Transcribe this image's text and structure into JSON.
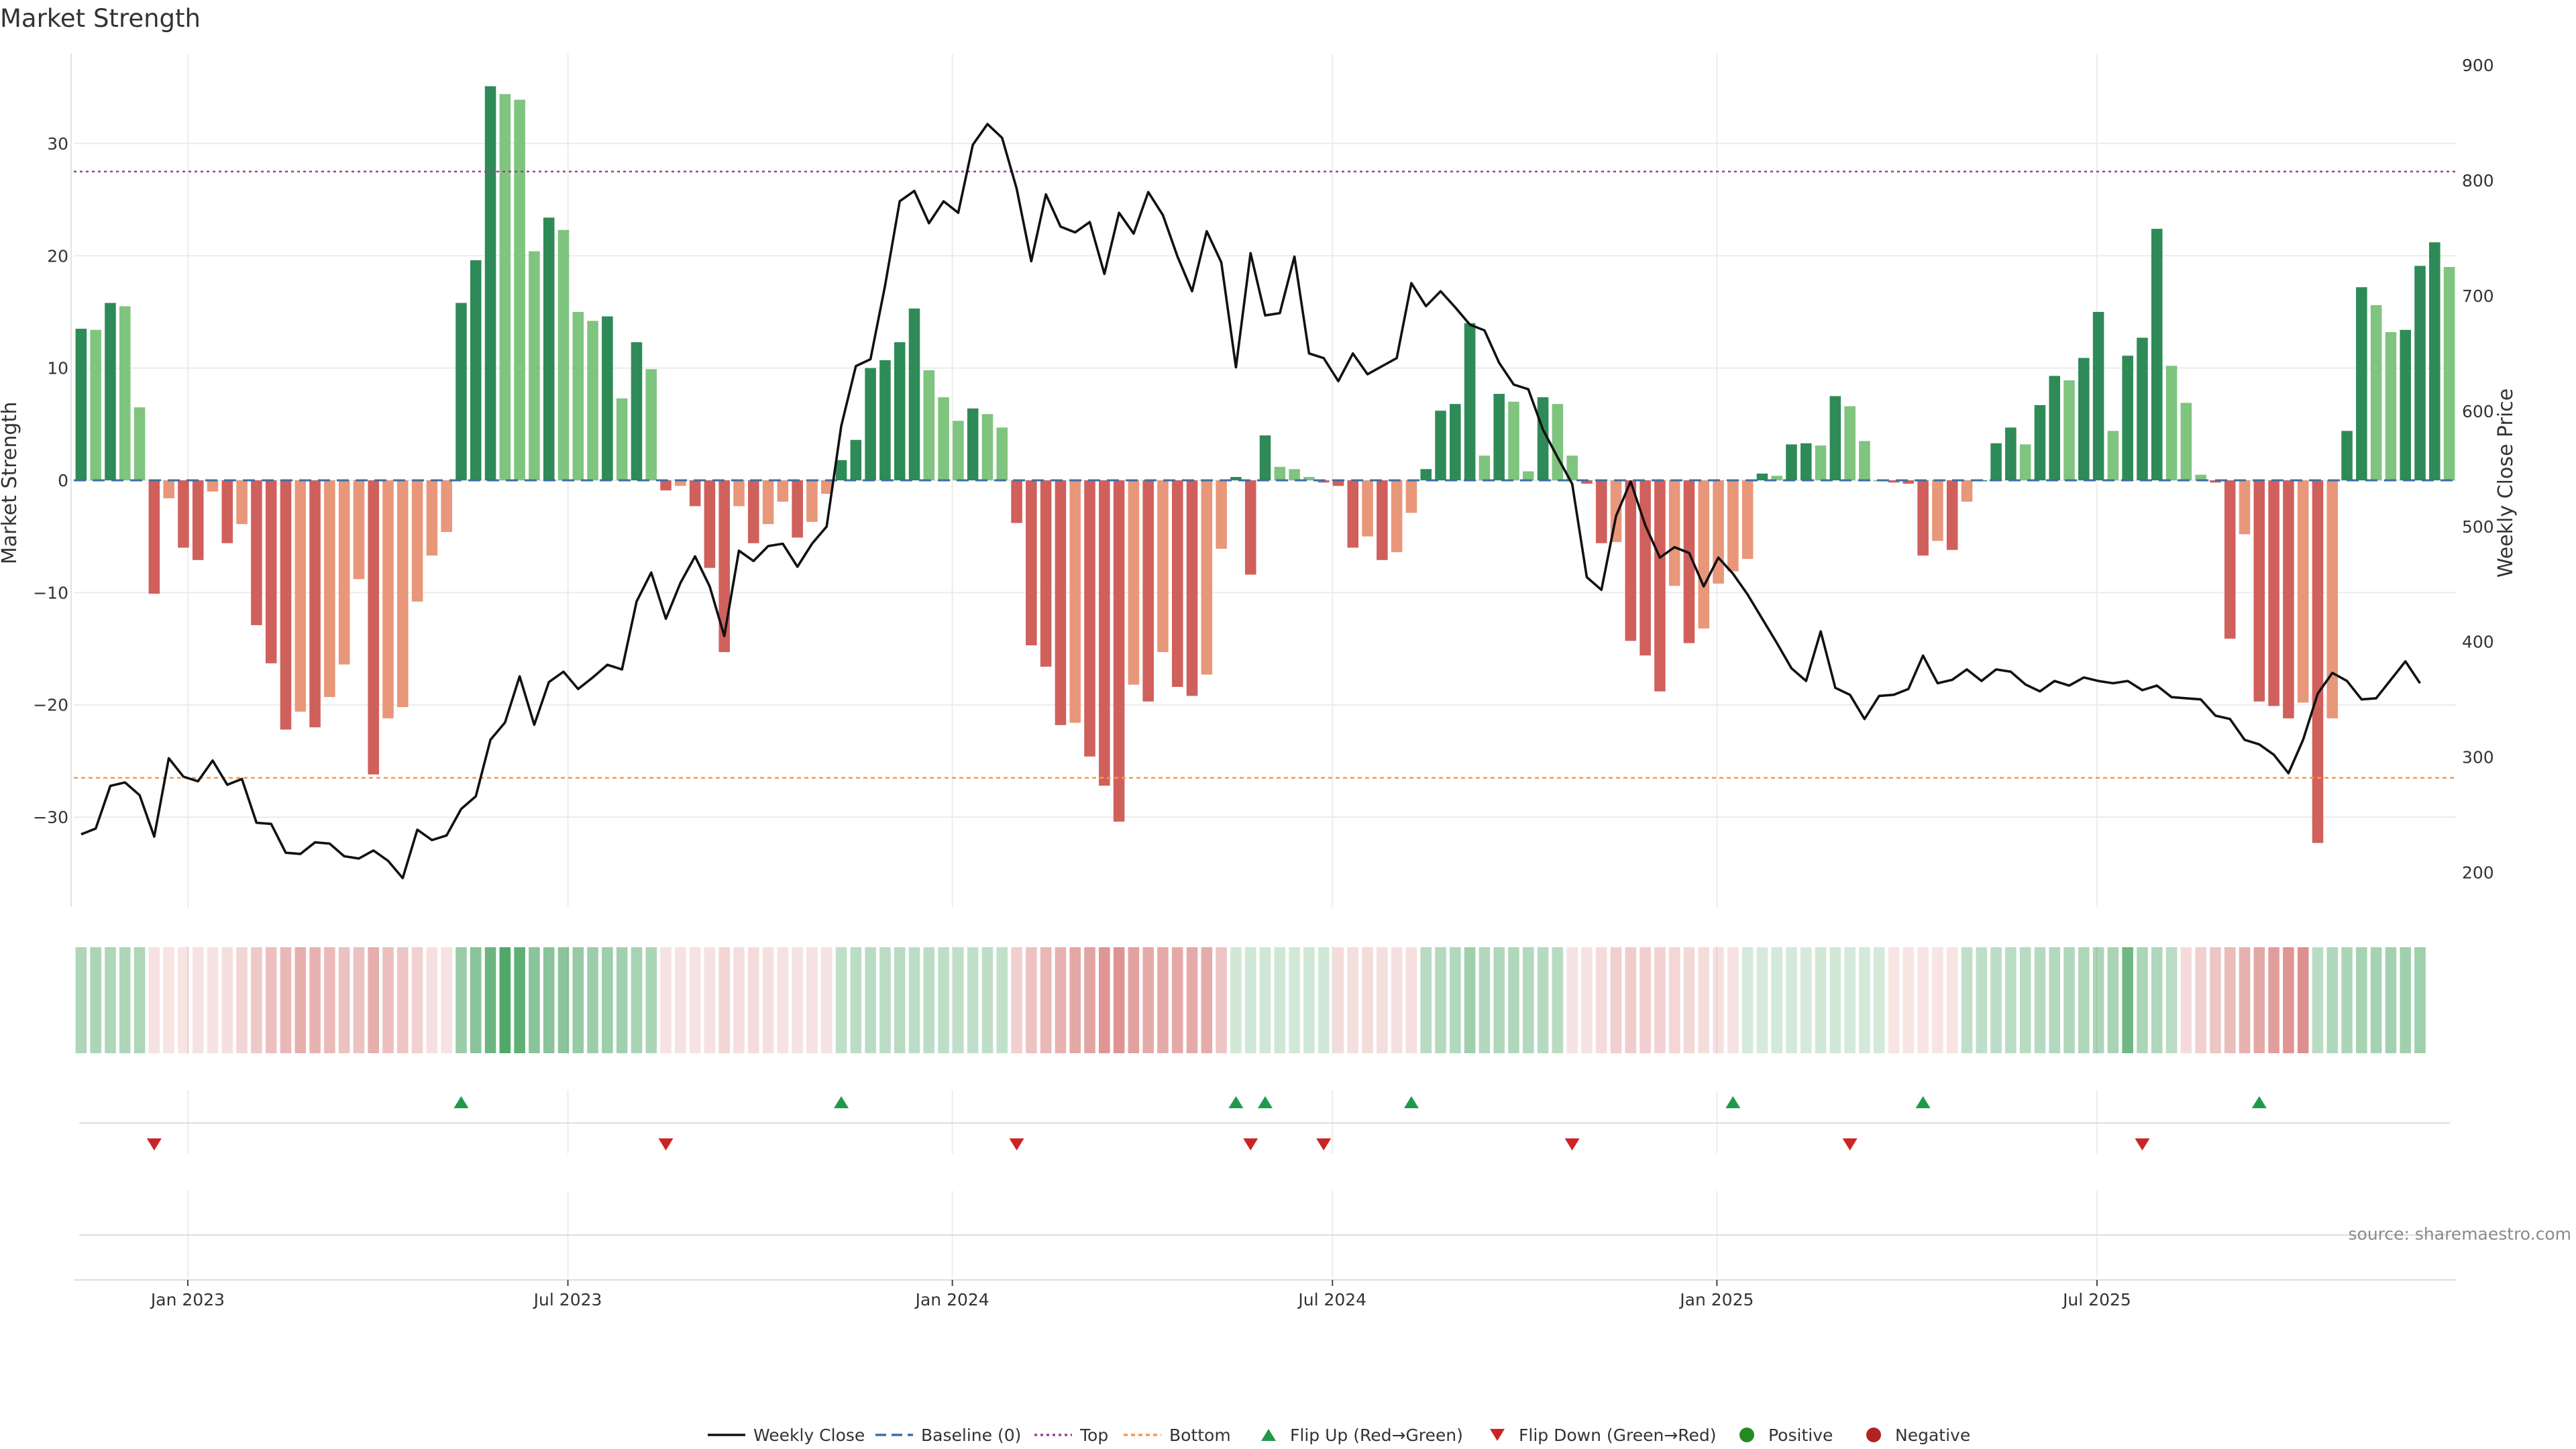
{
  "chart_data": {
    "type": "bar",
    "title": "Market Strength",
    "ylabel_left": "Market Strength",
    "ylabel_right": "Weekly Close Price",
    "ylim": [
      -38,
      38
    ],
    "ylim_right": [
      170,
      910
    ],
    "yticks_left": [
      "30",
      "20",
      "10",
      "0",
      "−10",
      "−20",
      "−30"
    ],
    "yticks_left_values": [
      30,
      20,
      10,
      0,
      -10,
      -20,
      -30
    ],
    "yticks_right": [
      "900",
      "800",
      "700",
      "600",
      "500",
      "400",
      "300",
      "200"
    ],
    "yticks_right_values": [
      900,
      800,
      700,
      600,
      500,
      400,
      300,
      200
    ],
    "top_line": 27.5,
    "bottom_line": -26.5,
    "x_start_week": 0,
    "x_ticks": [
      {
        "label": "Jan 2023",
        "week": 7.3
      },
      {
        "label": "Jul 2023",
        "week": 33.3
      },
      {
        "label": "Jan 2024",
        "week": 59.6
      },
      {
        "label": "Jul 2024",
        "week": 85.6
      },
      {
        "label": "Jan 2025",
        "week": 111.9
      },
      {
        "label": "Jul 2025",
        "week": 137.9
      }
    ],
    "strength": [
      13.5,
      13.4,
      15.8,
      15.5,
      6.5,
      -10.1,
      -1.6,
      -6.0,
      -7.1,
      -1.0,
      -5.6,
      -3.9,
      -12.9,
      -16.3,
      -22.2,
      -20.6,
      -22.0,
      -19.3,
      -16.4,
      -8.8,
      -26.2,
      -21.2,
      -20.2,
      -10.8,
      -6.7,
      -4.6,
      15.8,
      19.6,
      35.1,
      34.4,
      33.9,
      20.4,
      23.4,
      22.3,
      15.0,
      14.2,
      14.6,
      7.3,
      12.3,
      9.9,
      -0.9,
      -0.5,
      -2.3,
      -7.8,
      -15.3,
      -2.3,
      -5.6,
      -3.9,
      -1.9,
      -5.1,
      -3.7,
      -1.2,
      1.8,
      3.6,
      10.0,
      10.7,
      12.3,
      15.3,
      9.8,
      7.4,
      5.3,
      6.4,
      5.9,
      4.7,
      -3.8,
      -14.7,
      -16.6,
      -21.8,
      -21.6,
      -24.6,
      -27.2,
      -30.4,
      -18.2,
      -19.7,
      -15.3,
      -18.4,
      -19.2,
      -17.3,
      -6.1,
      0.3,
      -8.4,
      4.0,
      1.2,
      1.0,
      0.3,
      -0.2,
      -0.5,
      -6.0,
      -5.0,
      -7.1,
      -6.4,
      -2.9,
      1.0,
      6.2,
      6.8,
      14.0,
      2.2,
      7.7,
      7.0,
      0.8,
      7.4,
      6.8,
      2.2,
      -0.3,
      -5.6,
      -5.5,
      -14.3,
      -15.6,
      -18.8,
      -9.4,
      -14.5,
      -13.2,
      -9.2,
      -8.1,
      -7.0,
      0.6,
      0.4,
      3.2,
      3.3,
      3.1,
      7.5,
      6.6,
      3.5,
      0.0,
      -0.2,
      -0.3,
      -6.7,
      -5.4,
      -6.2,
      -1.9,
      0.0,
      3.3,
      4.7,
      3.2,
      6.7,
      9.3,
      8.9,
      10.9,
      15.0,
      4.4,
      11.1,
      12.7,
      22.4,
      10.2,
      6.9,
      0.5,
      -0.2,
      -14.1,
      -4.8,
      -19.7,
      -20.1,
      -21.2,
      -19.8,
      -32.3,
      -21.2,
      4.4,
      17.2,
      15.6,
      13.2,
      13.4,
      19.1,
      21.2,
      19.0
    ],
    "close": [
      233,
      238,
      275,
      278,
      267,
      231,
      299,
      283,
      279,
      297,
      276,
      281,
      243,
      242,
      217,
      216,
      226,
      225,
      214,
      212,
      219,
      210,
      195,
      237,
      228,
      232,
      255,
      266,
      315,
      330,
      370,
      328,
      365,
      374,
      359,
      369,
      380,
      376,
      435,
      460,
      420,
      451,
      474,
      448,
      405,
      479,
      470,
      483,
      485,
      465,
      485,
      500,
      587,
      639,
      645,
      709,
      782,
      791,
      763,
      782,
      772,
      831,
      849,
      837,
      793,
      730,
      788,
      760,
      755,
      764,
      719,
      772,
      754,
      790,
      770,
      734,
      704,
      756,
      729,
      638,
      737,
      683,
      685,
      734,
      650,
      646,
      626,
      650,
      632,
      639,
      646,
      711,
      691,
      704,
      690,
      675,
      670,
      642,
      623,
      619,
      584,
      560,
      537,
      456,
      445,
      509,
      539,
      501,
      473,
      482,
      477,
      448,
      473,
      459,
      441,
      420,
      399,
      377,
      366,
      409,
      360,
      354,
      333,
      353,
      354,
      359,
      388,
      364,
      367,
      376,
      366,
      376,
      374,
      363,
      357,
      366,
      362,
      369,
      366,
      364,
      366,
      358,
      362,
      352,
      351,
      350,
      336,
      333,
      315,
      311,
      302,
      286,
      315,
      355,
      373,
      366,
      350,
      351,
      367,
      383,
      364
    ],
    "strength_band_pct": [
      39,
      40,
      39,
      39,
      39,
      -15,
      -14,
      -14,
      -15,
      -15,
      -17,
      -22,
      -28,
      -33,
      -37,
      -42,
      -40,
      -36,
      -32,
      -32,
      -42,
      -33,
      -30,
      -24,
      -16,
      -15,
      49,
      57,
      70,
      84,
      76,
      56,
      56,
      55,
      50,
      48,
      47,
      45,
      42,
      40,
      -15,
      -15,
      -15,
      -15,
      -22,
      -17,
      -18,
      -16,
      -15,
      -15,
      -15,
      -15,
      30,
      32,
      33,
      33,
      34,
      32,
      32,
      31,
      30,
      30,
      31,
      29,
      -25,
      -31,
      -37,
      -40,
      -45,
      -47,
      -55,
      -56,
      -49,
      -44,
      -44,
      -44,
      -44,
      -43,
      -30,
      22,
      23,
      23,
      23,
      22,
      23,
      22,
      -18,
      -17,
      -18,
      -17,
      -16,
      -16,
      34,
      36,
      37,
      46,
      37,
      38,
      38,
      37,
      35,
      34,
      -15,
      -15,
      -18,
      -25,
      -26,
      -25,
      -23,
      -21,
      -20,
      -18,
      -16,
      -15,
      20,
      20,
      21,
      21,
      20,
      23,
      22,
      21,
      21,
      21,
      -14,
      -14,
      -14,
      -14,
      -14,
      30,
      31,
      32,
      33,
      34,
      35,
      37,
      38,
      39,
      40,
      41,
      69,
      40,
      38,
      33,
      -19,
      -25,
      -30,
      -35,
      -40,
      -45,
      -50,
      -55,
      -57,
      33,
      38,
      40,
      42,
      43,
      44,
      45,
      46
    ],
    "flip_up_weeks": [
      26,
      52,
      79,
      81,
      91,
      113,
      126,
      149
    ],
    "flip_down_weeks": [
      5,
      40,
      64,
      80,
      85,
      102,
      121,
      141
    ],
    "colors": {
      "pos_strong": "#2e8b57",
      "pos_weak": "#7fc47f",
      "neg_strong": "#d0605c",
      "neg_weak": "#e8977a",
      "top_line": "#9b3f9b",
      "bottom_line": "#f09a57",
      "baseline": "#3b6ea5",
      "flip_up": "#1f9a4b",
      "flip_down": "#cc2424",
      "positive": "#228b22",
      "negative": "#b22222"
    },
    "legend": [
      "Weekly Close",
      "Baseline (0)",
      "Top",
      "Bottom",
      "Flip Up (Red→Green)",
      "Flip Down (Green→Red)",
      "Positive",
      "Negative"
    ],
    "legend_position": "bottom-center",
    "source": "source: sharemaestro.com"
  }
}
